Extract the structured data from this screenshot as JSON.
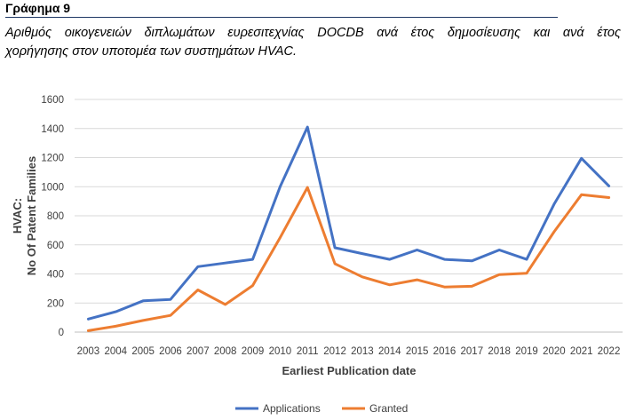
{
  "figure": {
    "label": "Γράφημα 9",
    "caption_line1": "Αριθμός οικογενειών διπλωμάτων ευρεσιτεχνίας DOCDB ανά έτος δημοσίευσης και ανά έτος",
    "caption_line2": "χορήγησης στον υποτομέα των συστημάτων HVAC."
  },
  "chart_data": {
    "type": "line",
    "title": "",
    "xlabel": "Earliest Publication date",
    "ylabel_line1": "HVAC:",
    "ylabel_line2": "No Of Patent Families",
    "ylim": [
      0,
      1600
    ],
    "yticks": [
      0,
      200,
      400,
      600,
      800,
      1000,
      1200,
      1400,
      1600
    ],
    "grid": "horizontal",
    "legend_position": "bottom",
    "x": [
      "2003",
      "2004",
      "2005",
      "2006",
      "2007",
      "2008",
      "2009",
      "2010",
      "2011",
      "2012",
      "2013",
      "2014",
      "2015",
      "2016",
      "2017",
      "2018",
      "2019",
      "2020",
      "2021",
      "2022"
    ],
    "series": [
      {
        "name": "Applications",
        "color": "#4472c4",
        "values": [
          90,
          140,
          215,
          225,
          450,
          475,
          500,
          1000,
          1410,
          580,
          540,
          500,
          565,
          500,
          490,
          565,
          500,
          880,
          1195,
          1005
        ]
      },
      {
        "name": "Granted",
        "color": "#ed7d31",
        "values": [
          10,
          40,
          80,
          115,
          290,
          190,
          320,
          650,
          995,
          470,
          380,
          325,
          360,
          310,
          315,
          395,
          405,
          690,
          945,
          925
        ]
      }
    ]
  }
}
